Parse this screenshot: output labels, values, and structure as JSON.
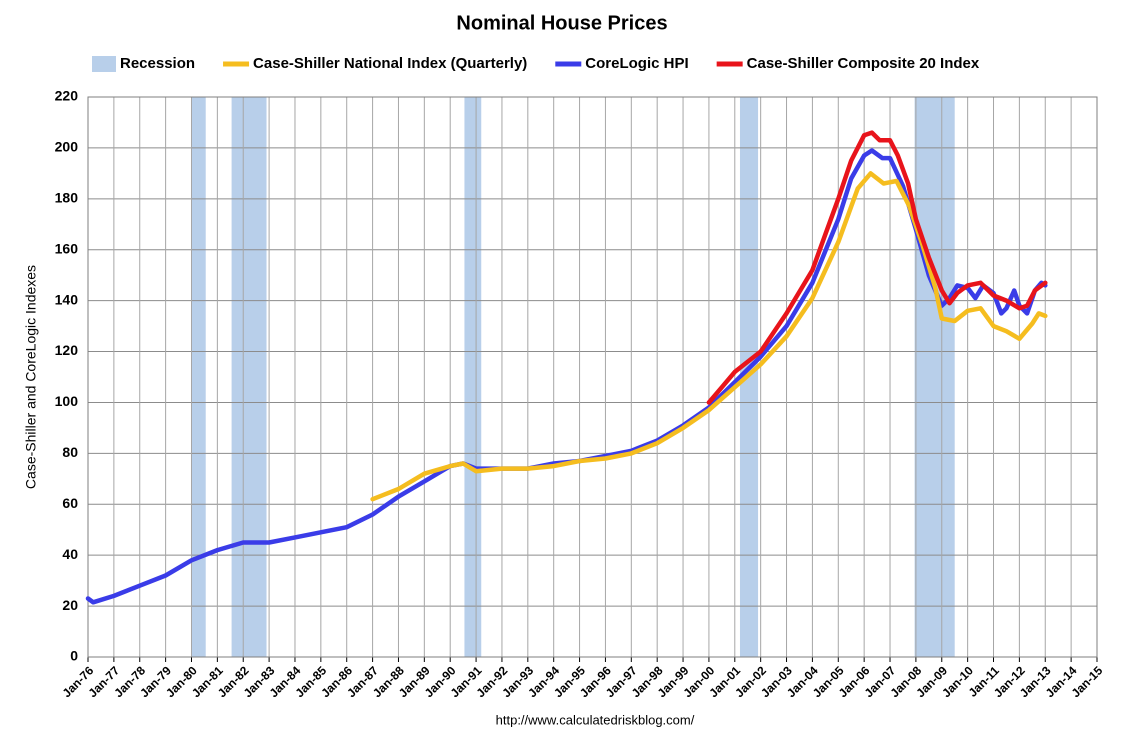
{
  "chart_data": {
    "type": "line",
    "title": "Nominal House Prices",
    "y_label": "Case-Shiller and CoreLogic Indexes",
    "source": "http://www.calculatedriskblog.com/",
    "recession": {
      "name": "Recession",
      "color": "#b8cfea",
      "periods": [
        [
          1980.0,
          1980.55
        ],
        [
          1981.55,
          1982.9
        ],
        [
          1990.55,
          1991.2
        ],
        [
          2001.2,
          2001.9
        ],
        [
          2007.95,
          2009.5
        ]
      ]
    },
    "series": [
      {
        "name": "Case-Shiller National Index (Quarterly)",
        "color": "#f5bd1f",
        "x": [
          1987,
          1988,
          1989,
          1990,
          1990.5,
          1991,
          1992,
          1993,
          1994,
          1995,
          1996,
          1997,
          1998,
          1999,
          2000,
          2001,
          2002,
          2003,
          2004,
          2005,
          2005.75,
          2006.25,
          2006.75,
          2007.25,
          2007.75,
          2008.25,
          2008.75,
          2009.0,
          2009.5,
          2010,
          2010.5,
          2011,
          2011.5,
          2012,
          2012.5,
          2012.75,
          2013
        ],
        "values": [
          62,
          66,
          72,
          75,
          76,
          73,
          74,
          74,
          75,
          77,
          78,
          80,
          84,
          90,
          97,
          106,
          115,
          126,
          141,
          163,
          184,
          190,
          186,
          187,
          177,
          162,
          145,
          133,
          132,
          136,
          137,
          130,
          128,
          125,
          131,
          135,
          134
        ]
      },
      {
        "name": "CoreLogic HPI",
        "color": "#3a3ce8",
        "x": [
          1976.0,
          1976.2,
          1977,
          1978,
          1979,
          1980,
          1981,
          1982,
          1983,
          1984,
          1985,
          1986,
          1987,
          1988,
          1989,
          1990,
          1990.5,
          1991,
          1992,
          1993,
          1994,
          1995,
          1996,
          1997,
          1998,
          1999,
          2000,
          2001,
          2002,
          2003,
          2004,
          2005,
          2005.5,
          2006,
          2006.3,
          2006.7,
          2007,
          2007.5,
          2008,
          2008.5,
          2009,
          2009.3,
          2009.6,
          2010,
          2010.3,
          2010.6,
          2011,
          2011.3,
          2011.5,
          2011.8,
          2012,
          2012.3,
          2012.6,
          2012.85,
          2013
        ],
        "values": [
          23,
          21.5,
          24,
          28,
          32,
          38,
          42,
          45,
          45,
          47,
          49,
          51,
          56,
          63,
          69,
          75,
          76,
          74,
          74,
          74,
          76,
          77,
          79,
          81,
          85,
          91,
          98,
          108,
          118,
          130,
          147,
          172,
          188,
          197,
          199,
          196,
          196,
          185,
          168,
          150,
          138,
          141,
          146,
          145,
          141,
          146,
          143,
          135,
          137,
          144,
          138,
          135,
          144,
          147,
          146
        ]
      },
      {
        "name": "Case-Shiller Composite 20 Index",
        "color": "#e8141b",
        "x": [
          2000,
          2000.5,
          2001,
          2002,
          2003,
          2004,
          2004.5,
          2005,
          2005.5,
          2006,
          2006.3,
          2006.6,
          2007,
          2007.3,
          2007.7,
          2008,
          2008.5,
          2009,
          2009.3,
          2009.6,
          2010,
          2010.5,
          2011,
          2011.5,
          2012,
          2012.3,
          2012.6,
          2013
        ],
        "values": [
          100,
          106,
          112,
          120,
          135,
          152,
          166,
          180,
          195,
          205,
          206,
          203,
          203,
          197,
          186,
          172,
          157,
          144,
          139,
          143,
          146,
          147,
          142,
          140,
          137,
          138,
          144,
          147
        ]
      }
    ],
    "xlim": [
      1976,
      2015
    ],
    "ylim": [
      0,
      220
    ],
    "yticks": [
      0,
      20,
      40,
      60,
      80,
      100,
      120,
      140,
      160,
      180,
      200,
      220
    ],
    "xticks": [
      {
        "value": 1976,
        "label": "Jan-76"
      },
      {
        "value": 1977,
        "label": "Jan-77"
      },
      {
        "value": 1978,
        "label": "Jan-78"
      },
      {
        "value": 1979,
        "label": "Jan-79"
      },
      {
        "value": 1980,
        "label": "Jan-80"
      },
      {
        "value": 1981,
        "label": "Jan-81"
      },
      {
        "value": 1982,
        "label": "Jan-82"
      },
      {
        "value": 1983,
        "label": "Jan-83"
      },
      {
        "value": 1984,
        "label": "Jan-84"
      },
      {
        "value": 1985,
        "label": "Jan-85"
      },
      {
        "value": 1986,
        "label": "Jan-86"
      },
      {
        "value": 1987,
        "label": "Jan-87"
      },
      {
        "value": 1988,
        "label": "Jan-88"
      },
      {
        "value": 1989,
        "label": "Jan-89"
      },
      {
        "value": 1990,
        "label": "Jan-90"
      },
      {
        "value": 1991,
        "label": "Jan-91"
      },
      {
        "value": 1992,
        "label": "Jan-92"
      },
      {
        "value": 1993,
        "label": "Jan-93"
      },
      {
        "value": 1994,
        "label": "Jan-94"
      },
      {
        "value": 1995,
        "label": "Jan-95"
      },
      {
        "value": 1996,
        "label": "Jan-96"
      },
      {
        "value": 1997,
        "label": "Jan-97"
      },
      {
        "value": 1998,
        "label": "Jan-98"
      },
      {
        "value": 1999,
        "label": "Jan-99"
      },
      {
        "value": 2000,
        "label": "Jan-00"
      },
      {
        "value": 2001,
        "label": "Jan-01"
      },
      {
        "value": 2002,
        "label": "Jan-02"
      },
      {
        "value": 2003,
        "label": "Jan-03"
      },
      {
        "value": 2004,
        "label": "Jan-04"
      },
      {
        "value": 2005,
        "label": "Jan-05"
      },
      {
        "value": 2006,
        "label": "Jan-06"
      },
      {
        "value": 2007,
        "label": "Jan-07"
      },
      {
        "value": 2008,
        "label": "Jan-08"
      },
      {
        "value": 2009,
        "label": "Jan-09"
      },
      {
        "value": 2010,
        "label": "Jan-10"
      },
      {
        "value": 2011,
        "label": "Jan-11"
      },
      {
        "value": 2012,
        "label": "Jan-12"
      },
      {
        "value": 2013,
        "label": "Jan-13"
      },
      {
        "value": 2014,
        "label": "Jan-14"
      },
      {
        "value": 2015,
        "label": "Jan-15"
      }
    ],
    "grid": true,
    "legend": "top"
  }
}
